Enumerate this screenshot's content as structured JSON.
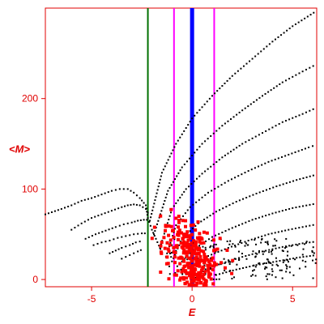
{
  "chart_data": {
    "type": "scatter",
    "title": "",
    "xlabel": "E",
    "ylabel": "<M>",
    "xlim": [
      -7.3,
      6.2
    ],
    "ylim": [
      -8,
      300
    ],
    "x_ticks": [
      -5,
      0,
      5
    ],
    "y_ticks": [
      0,
      100,
      200
    ],
    "axis_color": "#e00000",
    "vertical_lines": [
      {
        "x": -2.2,
        "color": "#007000",
        "width": 2
      },
      {
        "x": -0.9,
        "color": "#ff00ff",
        "width": 2
      },
      {
        "x": 0.0,
        "color": "#0000ff",
        "width": 5
      },
      {
        "x": 1.1,
        "color": "#ff00ff",
        "width": 2
      }
    ],
    "series": [
      {
        "color": "#000000",
        "curves": [
          [
            [
              -7.3,
              72
            ],
            [
              -6.5,
              78
            ],
            [
              -6.0,
              82
            ],
            [
              -5.5,
              87
            ],
            [
              -5.0,
              90
            ],
            [
              -4.5,
              94
            ],
            [
              -4.0,
              98
            ],
            [
              -3.6,
              100
            ],
            [
              -3.2,
              100
            ],
            [
              -2.9,
              96
            ],
            [
              -2.6,
              90
            ],
            [
              -2.3,
              82
            ],
            [
              -2.2,
              68
            ],
            [
              -2.0,
              55
            ],
            [
              -1.8,
              45
            ],
            [
              -1.5,
              30
            ]
          ],
          [
            [
              -6.0,
              55
            ],
            [
              -5.5,
              62
            ],
            [
              -5.0,
              68
            ],
            [
              -4.5,
              72
            ],
            [
              -4.0,
              76
            ],
            [
              -3.5,
              80
            ],
            [
              -3.2,
              82
            ],
            [
              -2.9,
              83
            ],
            [
              -2.6,
              82
            ],
            [
              -2.3,
              78
            ],
            [
              -2.1,
              70
            ]
          ],
          [
            [
              -5.3,
              45
            ],
            [
              -4.8,
              50
            ],
            [
              -4.3,
              54
            ],
            [
              -3.8,
              58
            ],
            [
              -3.4,
              61
            ],
            [
              -3.0,
              63
            ],
            [
              -2.7,
              65
            ],
            [
              -2.4,
              66
            ],
            [
              -2.1,
              66
            ]
          ],
          [
            [
              -4.9,
              38
            ],
            [
              -4.5,
              41
            ],
            [
              -4.1,
              43
            ],
            [
              -3.7,
              46
            ],
            [
              -3.3,
              48
            ],
            [
              -2.9,
              50
            ],
            [
              -2.5,
              51
            ],
            [
              -2.2,
              51
            ]
          ],
          [
            [
              -4.1,
              29
            ],
            [
              -3.8,
              32
            ],
            [
              -3.5,
              35
            ],
            [
              -3.1,
              38
            ],
            [
              -2.8,
              41
            ],
            [
              -2.4,
              43
            ]
          ],
          [
            [
              -3.5,
              23
            ],
            [
              -3.1,
              27
            ],
            [
              -2.7,
              31
            ],
            [
              -2.4,
              34
            ]
          ],
          [
            [
              -2.1,
              65
            ],
            [
              -1.5,
              118
            ],
            [
              -0.8,
              150
            ],
            [
              0.0,
              178
            ],
            [
              1.0,
              203
            ],
            [
              2.0,
              225
            ],
            [
              3.0,
              244
            ],
            [
              4.0,
              263
            ],
            [
              5.0,
              280
            ],
            [
              6.2,
              297
            ]
          ],
          [
            [
              -1.9,
              50
            ],
            [
              -1.2,
              98
            ],
            [
              -0.5,
              124
            ],
            [
              0.5,
              150
            ],
            [
              1.5,
              170
            ],
            [
              2.5,
              187
            ],
            [
              3.5,
              203
            ],
            [
              4.5,
              218
            ],
            [
              5.5,
              230
            ],
            [
              6.2,
              238
            ]
          ],
          [
            [
              -1.6,
              35
            ],
            [
              -1.0,
              78
            ],
            [
              -0.3,
              100
            ],
            [
              0.5,
              117
            ],
            [
              1.5,
              135
            ],
            [
              2.5,
              150
            ],
            [
              3.5,
              162
            ],
            [
              4.5,
              174
            ],
            [
              5.5,
              183
            ],
            [
              6.2,
              190
            ]
          ],
          [
            [
              -1.3,
              25
            ],
            [
              -0.8,
              60
            ],
            [
              -0.1,
              80
            ],
            [
              0.8,
              96
            ],
            [
              1.8,
              109
            ],
            [
              2.8,
              120
            ],
            [
              3.8,
              130
            ],
            [
              4.8,
              138
            ],
            [
              5.8,
              146
            ],
            [
              6.2,
              149
            ]
          ],
          [
            [
              -1.0,
              20
            ],
            [
              -0.5,
              45
            ],
            [
              0.3,
              62
            ],
            [
              1.2,
              75
            ],
            [
              2.2,
              86
            ],
            [
              3.2,
              95
            ],
            [
              4.2,
              103
            ],
            [
              5.2,
              110
            ],
            [
              6.2,
              116
            ]
          ],
          [
            [
              -0.5,
              20
            ],
            [
              0.2,
              35
            ],
            [
              1.0,
              47
            ],
            [
              2.0,
              57
            ],
            [
              3.0,
              66
            ],
            [
              4.0,
              73
            ],
            [
              5.0,
              79
            ],
            [
              6.2,
              84
            ]
          ],
          [
            [
              0.0,
              15
            ],
            [
              0.8,
              26
            ],
            [
              1.8,
              35
            ],
            [
              2.8,
              43
            ],
            [
              3.8,
              50
            ],
            [
              4.8,
              55
            ],
            [
              6.2,
              61
            ]
          ],
          [
            [
              0.5,
              10
            ],
            [
              1.5,
              18
            ],
            [
              2.5,
              25
            ],
            [
              3.5,
              31
            ],
            [
              4.5,
              36
            ],
            [
              5.5,
              40
            ],
            [
              6.2,
              42
            ]
          ],
          [
            [
              1.2,
              5
            ],
            [
              2.2,
              11
            ],
            [
              3.2,
              16
            ],
            [
              4.2,
              20
            ],
            [
              5.2,
              24
            ],
            [
              6.2,
              27
            ]
          ]
        ]
      },
      {
        "color": "#ff0000",
        "clusters": [
          {
            "cx": -0.6,
            "cy": 40,
            "sx": 0.55,
            "sy": 18,
            "n": 95
          },
          {
            "cx": 0.15,
            "cy": 10,
            "sx": 0.35,
            "sy": 10,
            "n": 95
          },
          {
            "cx": 0.5,
            "cy": 20,
            "sx": 0.7,
            "sy": 12,
            "n": 55
          },
          {
            "cx": -0.1,
            "cy": 35,
            "sx": 0.3,
            "sy": 8,
            "n": 40
          }
        ]
      }
    ]
  }
}
